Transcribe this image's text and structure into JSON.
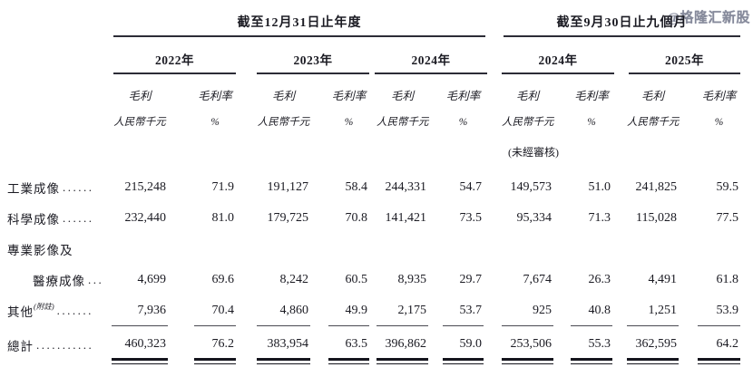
{
  "watermark": {
    "text": "@格隆汇新股"
  },
  "table": {
    "groups": [
      {
        "title": "截至12月31日止年度",
        "years": [
          {
            "label": "2022年"
          },
          {
            "label": "2023年"
          },
          {
            "label": "2024年"
          }
        ]
      },
      {
        "title": "截至9月30日止九個月",
        "years": [
          {
            "label": "2024年"
          },
          {
            "label": "2025年"
          }
        ]
      }
    ],
    "subheaders": {
      "profit": "毛利",
      "margin": "毛利率",
      "unit_amount": "人民幣千元",
      "unit_percent": "%",
      "unaudited": "(未經審核)"
    },
    "rows": [
      {
        "label": "工業成像",
        "leader": "......",
        "indent": false,
        "superscript": "",
        "rule": "none",
        "values": [
          "215,248",
          "71.9",
          "191,127",
          "58.4",
          "244,331",
          "54.7",
          "149,573",
          "51.0",
          "241,825",
          "59.5"
        ]
      },
      {
        "label": "科學成像",
        "leader": "......",
        "indent": false,
        "superscript": "",
        "rule": "none",
        "values": [
          "232,440",
          "81.0",
          "179,725",
          "70.8",
          "141,421",
          "73.5",
          "95,334",
          "71.3",
          "115,028",
          "77.5"
        ]
      },
      {
        "label": "專業影像及",
        "leader": "",
        "indent": false,
        "superscript": "",
        "rule": "none",
        "values": [
          "",
          "",
          "",
          "",
          "",
          "",
          "",
          "",
          "",
          ""
        ]
      },
      {
        "label": "醫療成像",
        "leader": "...",
        "indent": true,
        "superscript": "",
        "rule": "none",
        "values": [
          "4,699",
          "69.6",
          "8,242",
          "60.5",
          "8,935",
          "29.7",
          "7,674",
          "26.3",
          "4,491",
          "61.8"
        ]
      },
      {
        "label": "其他",
        "leader": ".......",
        "indent": false,
        "superscript": "(附註)",
        "rule": "single",
        "values": [
          "7,936",
          "70.4",
          "4,860",
          "49.9",
          "2,175",
          "53.7",
          "925",
          "40.8",
          "1,251",
          "53.9"
        ]
      },
      {
        "label": "總計",
        "leader": "...........",
        "indent": false,
        "superscript": "",
        "rule": "double",
        "values": [
          "460,323",
          "76.2",
          "383,954",
          "63.5",
          "396,862",
          "59.0",
          "253,506",
          "55.3",
          "362,595",
          "64.2"
        ]
      }
    ]
  }
}
